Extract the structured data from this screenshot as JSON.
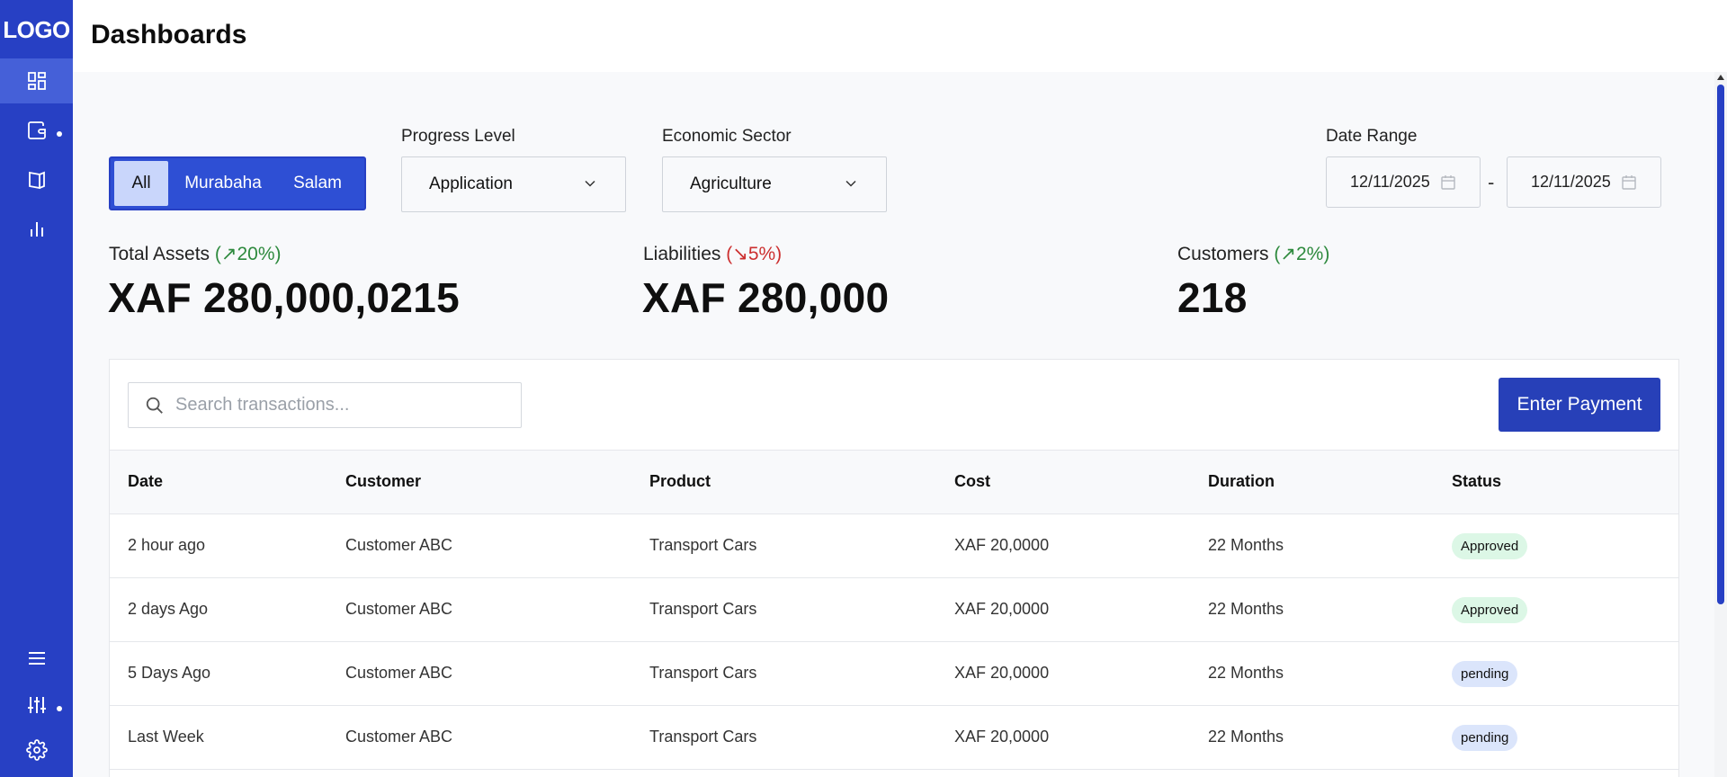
{
  "sidebar": {
    "logo": "LOGO",
    "icons": [
      "dashboard-icon",
      "wallet-icon",
      "book-icon",
      "bar-chart-icon",
      "menu-icon",
      "sliders-icon",
      "gear-icon"
    ]
  },
  "header": {
    "title": "Dashboards"
  },
  "filters": {
    "segments": [
      "All",
      "Murabaha",
      "Salam"
    ],
    "progress_label": "Progress Level",
    "progress_value": "Application",
    "sector_label": "Economic Sector",
    "sector_value": "Agriculture",
    "date_label": "Date Range",
    "date_from": "12/11/2025",
    "date_sep": "-",
    "date_to": "12/11/2025"
  },
  "stats": [
    {
      "label": "Total Assets",
      "change": "(↗20%)",
      "trend": "up",
      "value": "XAF 280,000,0215"
    },
    {
      "label": "Liabilities",
      "change": "(↘5%)",
      "trend": "down",
      "value": "XAF 280,000"
    },
    {
      "label": "Customers",
      "change": "(↗2%)",
      "trend": "up",
      "value": "218"
    }
  ],
  "search": {
    "placeholder": "Search transactions..."
  },
  "actions": {
    "enter_payment": "Enter Payment"
  },
  "table": {
    "columns": [
      "Date",
      "Customer",
      "Product",
      "Cost",
      "Duration",
      "Status"
    ],
    "rows": [
      {
        "date": "2 hour ago",
        "customer": "Customer ABC",
        "product": "Transport Cars",
        "cost": "XAF 20,0000",
        "duration": "22 Months",
        "status": "Approved"
      },
      {
        "date": "2 days Ago",
        "customer": "Customer ABC",
        "product": "Transport Cars",
        "cost": "XAF 20,0000",
        "duration": "22 Months",
        "status": "Approved"
      },
      {
        "date": "5 Days Ago",
        "customer": "Customer ABC",
        "product": "Transport Cars",
        "cost": "XAF 20,0000",
        "duration": "22 Months",
        "status": "pending"
      },
      {
        "date": "Last Week",
        "customer": "Customer ABC",
        "product": "Transport Cars",
        "cost": "XAF 20,0000",
        "duration": "22 Months",
        "status": "pending"
      }
    ]
  },
  "colors": {
    "brand": "#2740c4",
    "approved_bg": "#dcf7e6",
    "pending_bg": "#dbe5fb",
    "up": "#2e8a3e",
    "down": "#cc2f2f"
  }
}
